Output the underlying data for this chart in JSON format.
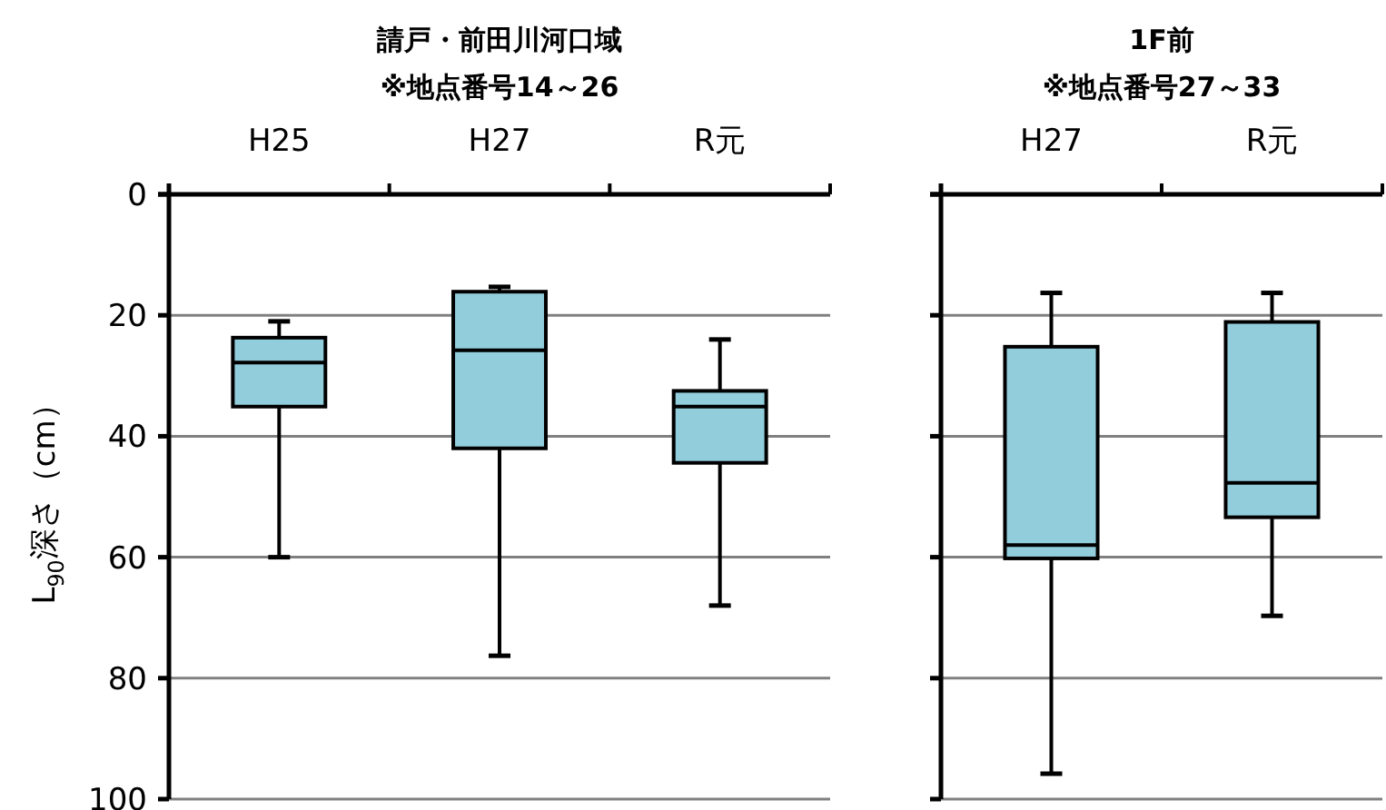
{
  "chart_data": [
    {
      "type": "box",
      "title": "請戸・前田川河口域",
      "subtitle": "※地点番号14～26",
      "ylabel": "L$_{90}$深さ（cm）",
      "categories": [
        "H25",
        "H27",
        "R元"
      ],
      "ylim": [
        100,
        0
      ],
      "yticks": [
        0,
        20,
        40,
        60,
        80,
        100
      ],
      "grid": "y",
      "series": [
        {
          "color": "#92cddc",
          "boxes": [
            {
              "low": 21,
              "q1": 23.7,
              "median": 27.8,
              "q3": 35.1,
              "high": 60
            },
            {
              "low": 15.3,
              "q1": 16.1,
              "median": 25.8,
              "q3": 42,
              "high": 76.3
            },
            {
              "low": 24,
              "q1": 32.5,
              "median": 35.1,
              "q3": 44.4,
              "high": 68
            }
          ]
        }
      ]
    },
    {
      "type": "box",
      "title": "1F前",
      "subtitle": "※地点番号27～33",
      "categories": [
        "H27",
        "R元"
      ],
      "ylim": [
        100,
        0
      ],
      "yticks": [
        0,
        20,
        40,
        60,
        80,
        100
      ],
      "grid": "y",
      "tick_labels": "x",
      "series": [
        {
          "color": "#92cddc",
          "boxes": [
            {
              "low": 16.3,
              "q1": 25.2,
              "median": 58,
              "q3": 60.2,
              "high": 95.8
            },
            {
              "low": 16.3,
              "q1": 21.1,
              "median": 47.7,
              "q3": 53.4,
              "high": 69.7
            }
          ]
        }
      ]
    }
  ]
}
